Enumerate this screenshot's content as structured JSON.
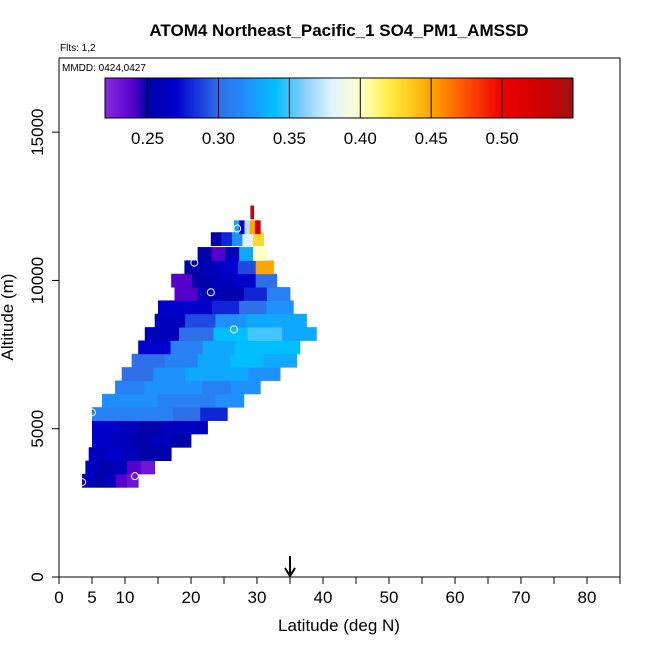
{
  "chart_data": {
    "type": "heatmap",
    "title": "ATOM4 Northeast_Pacific_1 SO4_PM1_AMSSD",
    "flights_label": "Flts: 1,2",
    "dates_label": "MMDD: 0424,0427",
    "xlabel": "Latitude (deg N)",
    "ylabel": "Altitude (m)",
    "xlim": [
      0,
      85
    ],
    "ylim": [
      0,
      17500
    ],
    "x_ticks": [
      0,
      10,
      20,
      30,
      40,
      50,
      60,
      70,
      80
    ],
    "x_ticks_extra": [
      5
    ],
    "x_minor_ticks": [
      15,
      25,
      35,
      45,
      55,
      65,
      75,
      85
    ],
    "y_ticks": [
      0,
      5000,
      10000,
      15000
    ],
    "colorbar": {
      "min": 0.22,
      "max": 0.55,
      "ticks": [
        0.25,
        0.3,
        0.35,
        0.4,
        0.45,
        0.5
      ],
      "tick_labels": [
        "0.25",
        "0.30",
        "0.35",
        "0.40",
        "0.45",
        "0.50"
      ],
      "stops": [
        [
          0.22,
          "#8a2be2"
        ],
        [
          0.24,
          "#5500cc"
        ],
        [
          0.25,
          "#0000aa"
        ],
        [
          0.27,
          "#0000cd"
        ],
        [
          0.3,
          "#2f6fe8"
        ],
        [
          0.32,
          "#1e90ff"
        ],
        [
          0.34,
          "#00bfff"
        ],
        [
          0.36,
          "#87cefa"
        ],
        [
          0.38,
          "#e0f4ff"
        ],
        [
          0.4,
          "#ffffcc"
        ],
        [
          0.42,
          "#ffee44"
        ],
        [
          0.45,
          "#ffa500"
        ],
        [
          0.47,
          "#ff6000"
        ],
        [
          0.5,
          "#ee0000"
        ],
        [
          0.53,
          "#cc0000"
        ],
        [
          0.55,
          "#a01010"
        ]
      ]
    },
    "rows": [
      {
        "alt": 3250,
        "lat_start": 3.5,
        "lat_end": 12.0,
        "values": [
          0.26,
          0.25,
          0.26,
          0.24,
          0.23
        ]
      },
      {
        "alt": 3700,
        "lat_start": 4.0,
        "lat_end": 14.5,
        "values": [
          0.26,
          0.25,
          0.26,
          0.24,
          0.23
        ]
      },
      {
        "alt": 4150,
        "lat_start": 4.5,
        "lat_end": 17.0,
        "values": [
          0.26,
          0.27,
          0.26,
          0.25,
          0.25
        ]
      },
      {
        "alt": 4600,
        "lat_start": 5.0,
        "lat_end": 20.0,
        "values": [
          0.27,
          0.26,
          0.25,
          0.26,
          0.25
        ]
      },
      {
        "alt": 5050,
        "lat_start": 5.0,
        "lat_end": 22.5,
        "values": [
          0.27,
          0.26,
          0.25,
          0.26,
          0.26
        ]
      },
      {
        "alt": 5500,
        "lat_start": 5.0,
        "lat_end": 25.5,
        "values": [
          0.31,
          0.31,
          0.31,
          0.3,
          0.28
        ]
      },
      {
        "alt": 5950,
        "lat_start": 6.5,
        "lat_end": 28.0,
        "values": [
          0.32,
          0.32,
          0.31,
          0.31,
          0.32
        ]
      },
      {
        "alt": 6400,
        "lat_start": 8.5,
        "lat_end": 30.5,
        "values": [
          0.31,
          0.32,
          0.32,
          0.31,
          0.32
        ]
      },
      {
        "alt": 6850,
        "lat_start": 9.5,
        "lat_end": 33.5,
        "values": [
          0.3,
          0.32,
          0.33,
          0.33,
          0.32
        ]
      },
      {
        "alt": 7300,
        "lat_start": 11.0,
        "lat_end": 36.0,
        "values": [
          0.3,
          0.31,
          0.33,
          0.34,
          0.33
        ]
      },
      {
        "alt": 7750,
        "lat_start": 12.0,
        "lat_end": 36.5,
        "values": [
          0.27,
          0.31,
          0.33,
          0.34,
          0.34
        ]
      },
      {
        "alt": 8200,
        "lat_start": 13.0,
        "lat_end": 39.0,
        "values": [
          0.26,
          0.3,
          0.34,
          0.35,
          0.33
        ]
      },
      {
        "alt": 8650,
        "lat_start": 14.5,
        "lat_end": 37.5,
        "values": [
          0.26,
          0.29,
          0.32,
          0.33,
          0.33
        ]
      },
      {
        "alt": 9100,
        "lat_start": 15.0,
        "lat_end": 35.5,
        "values": [
          0.27,
          0.27,
          0.28,
          0.3,
          0.32
        ]
      },
      {
        "alt": 9550,
        "lat_start": 17.5,
        "lat_end": 35.0,
        "values": [
          0.24,
          0.26,
          0.25,
          0.28,
          0.31
        ]
      },
      {
        "alt": 10000,
        "lat_start": 17.0,
        "lat_end": 33.0,
        "values": [
          0.24,
          0.25,
          0.26,
          0.27,
          0.3
        ]
      },
      {
        "alt": 10450,
        "lat_start": 19.0,
        "lat_end": 32.5,
        "values": [
          0.25,
          0.26,
          0.27,
          0.29,
          0.45
        ]
      },
      {
        "alt": 10900,
        "lat_start": 21.0,
        "lat_end": 31.5,
        "values": [
          0.25,
          0.24,
          0.26,
          0.33,
          0.4
        ]
      },
      {
        "alt": 11400,
        "lat_start": 23.0,
        "lat_end": 31.0,
        "values": [
          0.25,
          0.28,
          0.32,
          0.38,
          0.43
        ]
      },
      {
        "alt": 11800,
        "lat_start": 26.5,
        "lat_end": 30.5,
        "values": [
          0.33,
          0.27,
          0.37,
          0.45,
          0.52
        ]
      },
      {
        "alt": 12300,
        "lat_start": 29.0,
        "lat_end": 29.5,
        "values": [
          0.54
        ]
      }
    ],
    "markers": [
      {
        "lat": 3.5,
        "alt": 3200
      },
      {
        "lat": 11.5,
        "alt": 3400
      },
      {
        "lat": 5.0,
        "alt": 5550
      },
      {
        "lat": 26.5,
        "alt": 8350
      },
      {
        "lat": 23.0,
        "alt": 9600
      },
      {
        "lat": 20.5,
        "alt": 10600
      },
      {
        "lat": 27.0,
        "alt": 11750
      }
    ],
    "arrow_lat": 35
  }
}
